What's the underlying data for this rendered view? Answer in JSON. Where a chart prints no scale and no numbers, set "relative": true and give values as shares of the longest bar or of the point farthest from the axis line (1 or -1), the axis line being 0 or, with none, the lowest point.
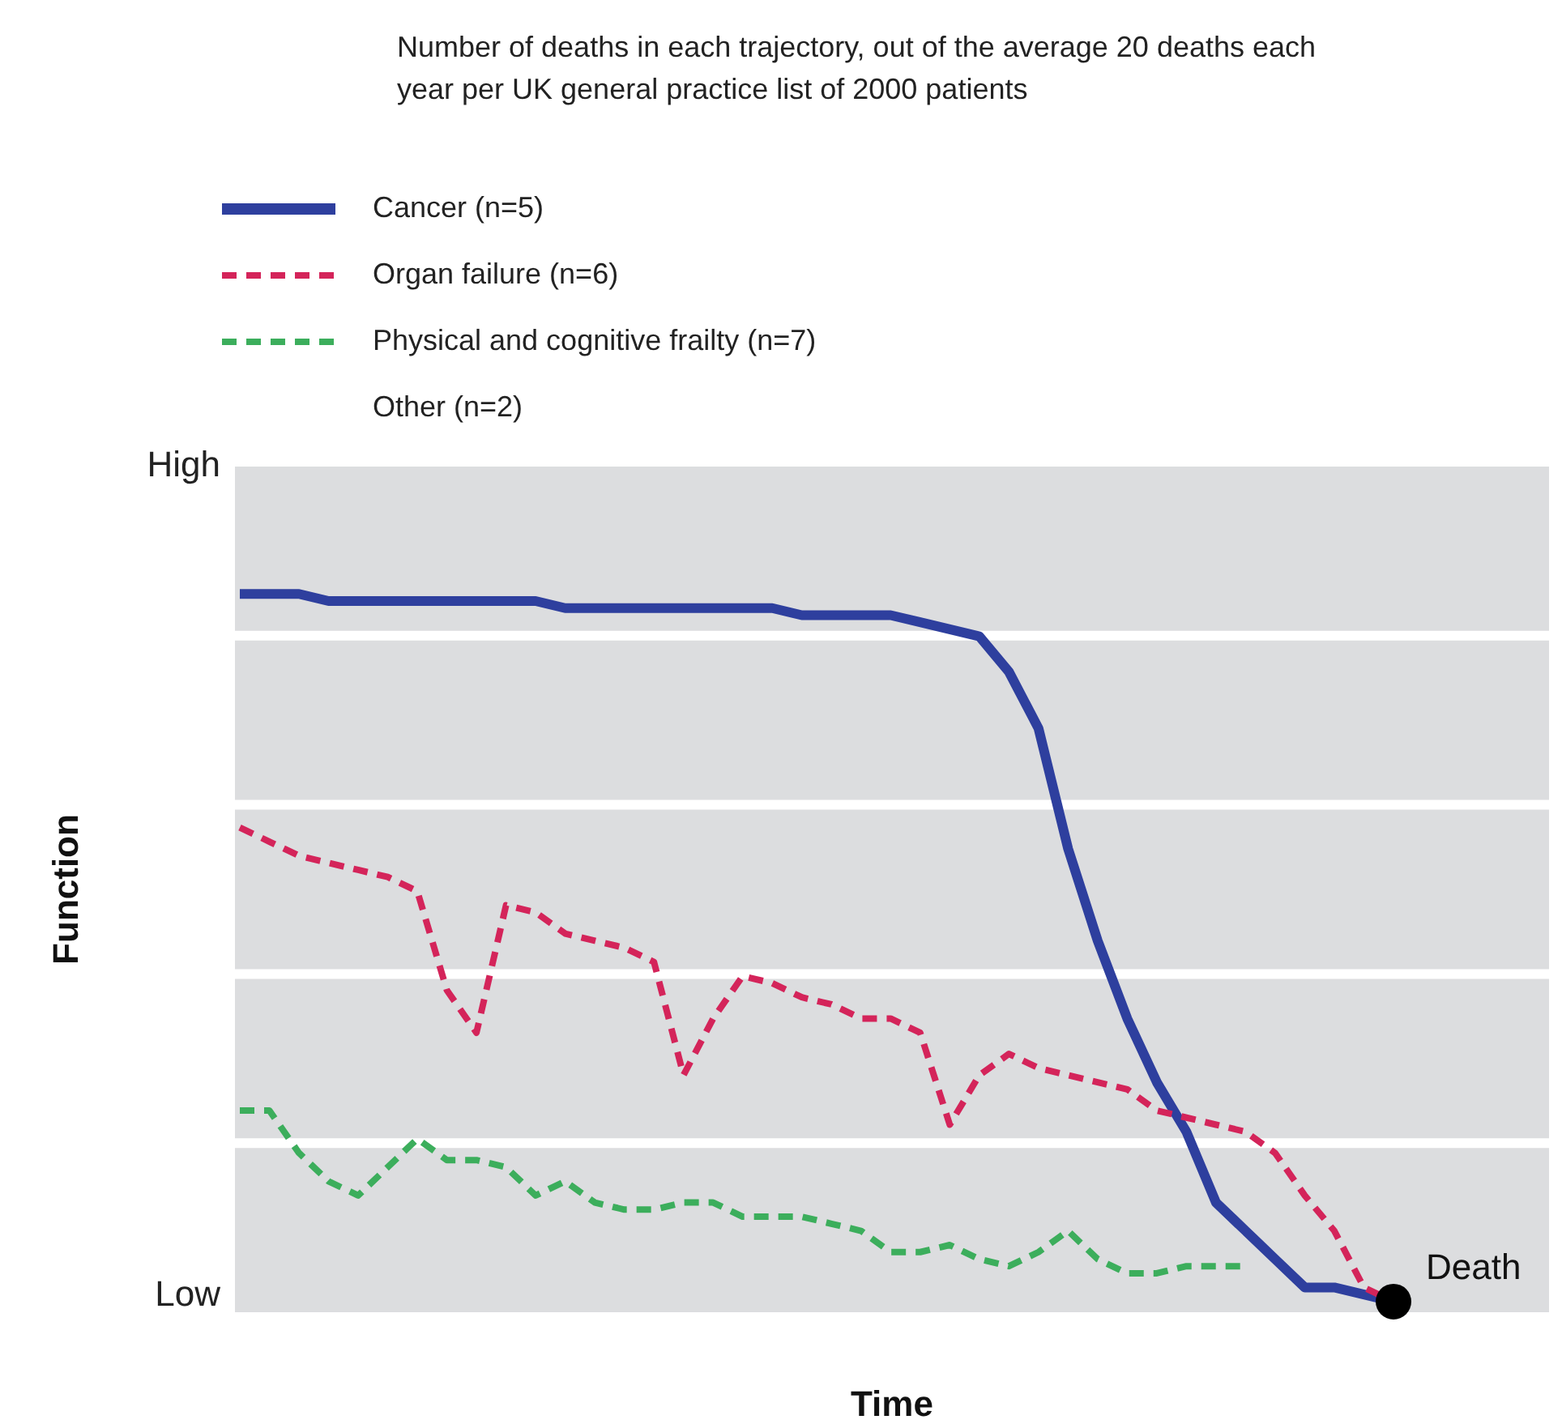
{
  "chart_data": {
    "type": "line",
    "title": "Number of deaths in each trajectory, out of the average 20 deaths each year per UK general practice list of 2000 patients",
    "xlabel": "Time",
    "ylabel": "Function",
    "relative": true,
    "categories": [
      null,
      null,
      null,
      null,
      null,
      null,
      null,
      null,
      null,
      null,
      null,
      null,
      null,
      null,
      null,
      null,
      null,
      null,
      null,
      null,
      null,
      null,
      null,
      null,
      null,
      null,
      null,
      null,
      null,
      null,
      null,
      null,
      null,
      null,
      null,
      null,
      null,
      null,
      null,
      null
    ],
    "series": [
      {
        "name": "Cancer (n=5)",
        "color": "#2e3f9e",
        "line_style": "solid",
        "values": [
          1,
          1,
          1,
          0.99,
          0.99,
          0.99,
          0.99,
          0.99,
          0.99,
          0.99,
          0.99,
          0.98,
          0.98,
          0.98,
          0.98,
          0.98,
          0.98,
          0.98,
          0.98,
          0.97,
          0.97,
          0.97,
          0.97,
          0.96,
          0.95,
          0.94,
          0.89,
          0.81,
          0.64,
          0.51,
          0.4,
          0.31,
          0.24,
          0.14,
          0.1,
          0.06,
          0.02,
          0.02,
          0.01,
          0
        ]
      },
      {
        "name": "Organ failure (n=6)",
        "color": "#d4245a",
        "line_style": "dashed",
        "values": [
          0.67,
          0.65,
          0.63,
          0.62,
          0.61,
          0.6,
          0.58,
          0.44,
          0.38,
          0.56,
          0.55,
          0.52,
          0.51,
          0.5,
          0.48,
          0.32,
          0.4,
          0.46,
          0.45,
          0.43,
          0.42,
          0.4,
          0.4,
          0.38,
          0.25,
          0.32,
          0.35,
          0.33,
          0.32,
          0.31,
          0.3,
          0.27,
          0.26,
          0.25,
          0.24,
          0.21,
          0.15,
          0.1,
          0.02,
          0
        ]
      },
      {
        "name": "Physical and cognitive frailty (n=7)",
        "color": "#3cae5c",
        "line_style": "dashed",
        "values": [
          0.27,
          0.27,
          0.21,
          0.17,
          0.15,
          0.19,
          0.23,
          0.2,
          0.2,
          0.19,
          0.15,
          0.17,
          0.14,
          0.13,
          0.13,
          0.14,
          0.14,
          0.12,
          0.12,
          0.12,
          0.11,
          0.1,
          0.07,
          0.07,
          0.08,
          0.06,
          0.05,
          0.07,
          0.1,
          0.06,
          0.04,
          0.04,
          0.05,
          0.05,
          0.05,
          null,
          null,
          null,
          null,
          null
        ]
      },
      {
        "name": "Other (n=2)",
        "values": [
          null,
          null,
          null,
          null,
          null,
          null,
          null,
          null,
          null,
          null,
          null,
          null,
          null,
          null,
          null,
          null,
          null,
          null,
          null,
          null,
          null,
          null,
          null,
          null,
          null,
          null,
          null,
          null,
          null,
          null,
          null,
          null,
          null,
          null,
          null,
          null,
          null,
          null,
          null,
          null
        ]
      }
    ],
    "annotations": [
      "High",
      "Low",
      "Death"
    ],
    "grid": "y",
    "legend": "top left",
    "marker": "none"
  }
}
